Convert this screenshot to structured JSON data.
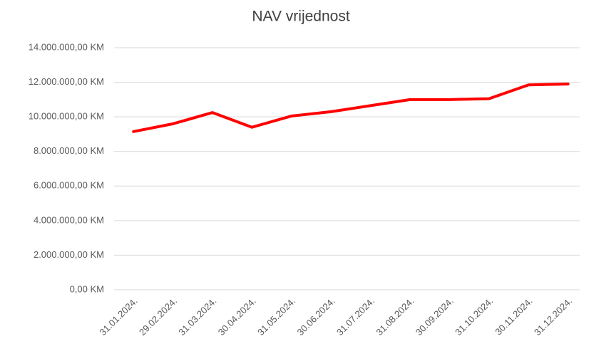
{
  "chart_data": {
    "type": "line",
    "title": "NAV vrijednost",
    "categories": [
      "31.01.2024.",
      "29.02.2024.",
      "31.03.2024.",
      "30.04.2024.",
      "31.05.2024.",
      "30.06.2024.",
      "31.07.2024.",
      "31.08.2024.",
      "30.09.2024.",
      "31.10.2024.",
      "30.11.2024.",
      "31.12.2024."
    ],
    "values": [
      9150000,
      9600000,
      10250000,
      9400000,
      10050000,
      10300000,
      10650000,
      11000000,
      11000000,
      11050000,
      11850000,
      11900000
    ],
    "color": "#ff0000",
    "ylim": [
      0,
      14000000
    ],
    "yticks": [
      {
        "value": 0,
        "label": "0,00 KM"
      },
      {
        "value": 2000000,
        "label": "2.000.000,00 KM"
      },
      {
        "value": 4000000,
        "label": "4.000.000,00 KM"
      },
      {
        "value": 6000000,
        "label": "6.000.000,00 KM"
      },
      {
        "value": 8000000,
        "label": "8.000.000,00 KM"
      },
      {
        "value": 10000000,
        "label": "10.000.000,00 KM"
      },
      {
        "value": 12000000,
        "label": "12.000.000,00 KM"
      },
      {
        "value": 14000000,
        "label": "14.000.000,00 KM"
      }
    ],
    "grid": true
  }
}
